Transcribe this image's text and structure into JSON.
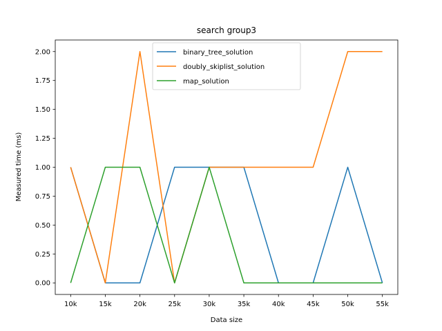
{
  "chart_data": {
    "type": "line",
    "title": "search group3",
    "xlabel": "Data size",
    "ylabel": "Measured time (ms)",
    "categories": [
      "10k",
      "15k",
      "20k",
      "25k",
      "30k",
      "35k",
      "40k",
      "45k",
      "50k",
      "55k"
    ],
    "ylim": [
      -0.1,
      2.1
    ],
    "yticks": [
      0.0,
      0.25,
      0.5,
      0.75,
      1.0,
      1.25,
      1.5,
      1.75,
      2.0
    ],
    "ytick_labels": [
      "0.00",
      "0.25",
      "0.50",
      "0.75",
      "1.00",
      "1.25",
      "1.50",
      "1.75",
      "2.00"
    ],
    "legend_position": "top-center",
    "series": [
      {
        "name": "binary_tree_solution",
        "color": "#1f77b4",
        "values": [
          1,
          0,
          0,
          1,
          1,
          1,
          0,
          0,
          1,
          0
        ]
      },
      {
        "name": "doubly_skiplist_solution",
        "color": "#ff7f0e",
        "values": [
          1,
          0,
          2,
          0,
          1,
          1,
          1,
          1,
          2,
          2
        ]
      },
      {
        "name": "map_solution",
        "color": "#2ca02c",
        "values": [
          0,
          1,
          1,
          0,
          1,
          0,
          0,
          0,
          0,
          0
        ]
      }
    ]
  }
}
